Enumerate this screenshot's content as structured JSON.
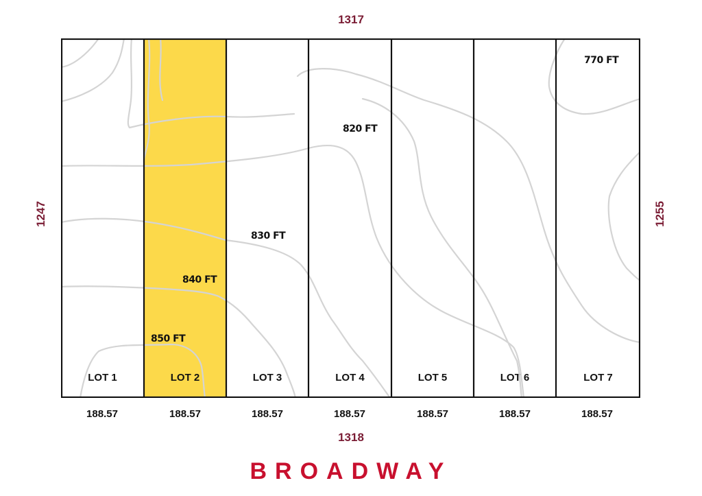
{
  "dimensions": {
    "top": "1317",
    "bottom": "1318",
    "left": "1247",
    "right": "1255"
  },
  "lots": [
    {
      "label": "LOT 1",
      "width": "188.57",
      "highlighted": false
    },
    {
      "label": "LOT 2",
      "width": "188.57",
      "highlighted": true
    },
    {
      "label": "LOT 3",
      "width": "188.57",
      "highlighted": false
    },
    {
      "label": "LOT 4",
      "width": "188.57",
      "highlighted": false
    },
    {
      "label": "LOT 5",
      "width": "188.57",
      "highlighted": false
    },
    {
      "label": "LOT 6",
      "width": "188.57",
      "highlighted": false
    },
    {
      "label": "LOT 7",
      "width": "188.57",
      "highlighted": false
    }
  ],
  "contours": {
    "c770": "770 FT",
    "c820": "820 FT",
    "c830": "830 FT",
    "c840": "840 FT",
    "c850": "850 FT"
  },
  "street": "BROADWAY",
  "colors": {
    "highlight": "#fcd94a",
    "dimension": "#7a1c34",
    "street": "#c8102e",
    "contour_line": "#d4d4d4"
  }
}
